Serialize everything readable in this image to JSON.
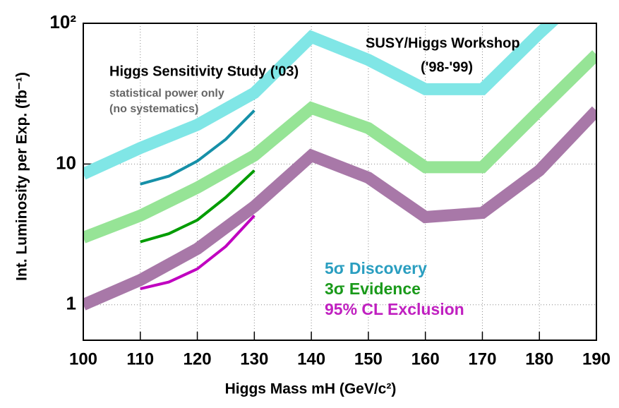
{
  "chart_data": {
    "type": "line",
    "xlabel": "Higgs Mass mH (GeV/c²)",
    "ylabel": "Int. Luminosity per Exp. (fb⁻¹)",
    "xlim": [
      100,
      190
    ],
    "xticks": [
      100,
      110,
      120,
      130,
      140,
      150,
      160,
      170,
      180,
      190
    ],
    "ylim": [
      0.56,
      100
    ],
    "yticks": [
      1,
      10,
      {
        "value": 100,
        "label": "10²"
      }
    ],
    "log_y": true,
    "grid": true,
    "series": [
      {
        "name": "5σ Discovery",
        "color": "#80e6e6",
        "text_color": "#2a9ec0",
        "band": true,
        "x": [
          100,
          110,
          120,
          130,
          140,
          150,
          160,
          170,
          180,
          190
        ],
        "values": [
          8.5,
          13,
          19,
          32,
          80,
          55,
          34,
          34,
          85,
          200
        ]
      },
      {
        "name": "3σ Evidence",
        "color": "#96e496",
        "text_color": "#1a9a1a",
        "band": true,
        "x": [
          100,
          110,
          120,
          130,
          140,
          150,
          160,
          170,
          180,
          190
        ],
        "values": [
          3,
          4.3,
          6.8,
          11.5,
          25,
          18,
          9.5,
          9.5,
          24,
          60
        ]
      },
      {
        "name": "95% CL Exclusion",
        "color": "#a878a8",
        "text_color": "#c020c0",
        "band": true,
        "x": [
          100,
          110,
          120,
          130,
          140,
          150,
          160,
          170,
          180,
          190
        ],
        "values": [
          1.0,
          1.5,
          2.5,
          5,
          11.5,
          8,
          4.2,
          4.5,
          9,
          24
        ]
      },
      {
        "color": "#1690a8",
        "band": false,
        "x": [
          110,
          115,
          120,
          125,
          130
        ],
        "values": [
          7.2,
          8.2,
          10.5,
          15,
          24
        ]
      },
      {
        "color": "#009c00",
        "band": false,
        "x": [
          110,
          115,
          120,
          125,
          130
        ],
        "values": [
          2.8,
          3.2,
          4.0,
          5.8,
          9
        ]
      },
      {
        "color": "#c000c0",
        "band": false,
        "x": [
          110,
          115,
          120,
          125,
          130
        ],
        "values": [
          1.3,
          1.45,
          1.8,
          2.6,
          4.3
        ]
      }
    ],
    "annotations": [
      {
        "text": "Higgs Sensitivity Study ('03)",
        "color": "#000000"
      },
      {
        "text": "statistical power only",
        "color": "#666666"
      },
      {
        "text": "(no systematics)",
        "color": "#666666"
      },
      {
        "text": "SUSY/Higgs Workshop",
        "color": "#000000"
      },
      {
        "text": "('98-'99)",
        "color": "#000000"
      }
    ]
  }
}
